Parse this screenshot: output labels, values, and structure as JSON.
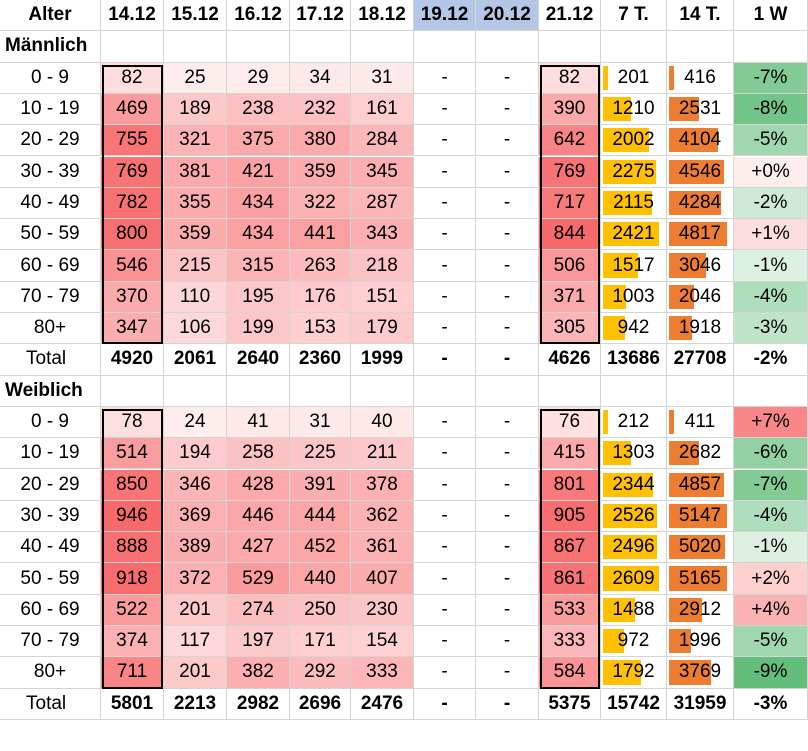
{
  "header": [
    "Alter",
    "14.12",
    "15.12",
    "16.12",
    "17.12",
    "18.12",
    "19.12",
    "20.12",
    "21.12",
    "7 T.",
    "14 T.",
    "1 W"
  ],
  "colors": {
    "weekend_header": "#b4c7e7",
    "bar_7t": "#ffc000",
    "bar_14t": "#ed7d31",
    "heat_max": "#f8696b",
    "heat_min": "#ffffff",
    "change_neg": "#63be7b",
    "change_pos": "#f8696b"
  },
  "sections": [
    {
      "title": "Männlich",
      "rows": [
        {
          "age": "0 - 9",
          "d1412": "82",
          "d1512": "25",
          "d1612": "29",
          "d1712": "34",
          "d1812": "31",
          "d1912": "-",
          "d2012": "-",
          "d2112": "82",
          "t7": "201",
          "t14": "416",
          "w1": "-7%"
        },
        {
          "age": "10 - 19",
          "d1412": "469",
          "d1512": "189",
          "d1612": "238",
          "d1712": "232",
          "d1812": "161",
          "d1912": "-",
          "d2012": "-",
          "d2112": "390",
          "t7": "1210",
          "t14": "2531",
          "w1": "-8%"
        },
        {
          "age": "20 - 29",
          "d1412": "755",
          "d1512": "321",
          "d1612": "375",
          "d1712": "380",
          "d1812": "284",
          "d1912": "-",
          "d2012": "-",
          "d2112": "642",
          "t7": "2002",
          "t14": "4104",
          "w1": "-5%"
        },
        {
          "age": "30 - 39",
          "d1412": "769",
          "d1512": "381",
          "d1612": "421",
          "d1712": "359",
          "d1812": "345",
          "d1912": "-",
          "d2012": "-",
          "d2112": "769",
          "t7": "2275",
          "t14": "4546",
          "w1": "+0%"
        },
        {
          "age": "40 - 49",
          "d1412": "782",
          "d1512": "355",
          "d1612": "434",
          "d1712": "322",
          "d1812": "287",
          "d1912": "-",
          "d2012": "-",
          "d2112": "717",
          "t7": "2115",
          "t14": "4284",
          "w1": "-2%"
        },
        {
          "age": "50 - 59",
          "d1412": "800",
          "d1512": "359",
          "d1612": "434",
          "d1712": "441",
          "d1812": "343",
          "d1912": "-",
          "d2012": "-",
          "d2112": "844",
          "t7": "2421",
          "t14": "4817",
          "w1": "+1%"
        },
        {
          "age": "60 - 69",
          "d1412": "546",
          "d1512": "215",
          "d1612": "315",
          "d1712": "263",
          "d1812": "218",
          "d1912": "-",
          "d2012": "-",
          "d2112": "506",
          "t7": "1517",
          "t14": "3046",
          "w1": "-1%"
        },
        {
          "age": "70 - 79",
          "d1412": "370",
          "d1512": "110",
          "d1612": "195",
          "d1712": "176",
          "d1812": "151",
          "d1912": "-",
          "d2012": "-",
          "d2112": "371",
          "t7": "1003",
          "t14": "2046",
          "w1": "-4%"
        },
        {
          "age": "80+",
          "d1412": "347",
          "d1512": "106",
          "d1612": "199",
          "d1712": "153",
          "d1812": "179",
          "d1912": "-",
          "d2012": "-",
          "d2112": "305",
          "t7": "942",
          "t14": "1918",
          "w1": "-3%"
        }
      ],
      "total": {
        "age": "Total",
        "d1412": "4920",
        "d1512": "2061",
        "d1612": "2640",
        "d1712": "2360",
        "d1812": "1999",
        "d1912": "-",
        "d2012": "-",
        "d2112": "4626",
        "t7": "13686",
        "t14": "27708",
        "w1": "-2%"
      }
    },
    {
      "title": "Weiblich",
      "rows": [
        {
          "age": "0 - 9",
          "d1412": "78",
          "d1512": "24",
          "d1612": "41",
          "d1712": "31",
          "d1812": "40",
          "d1912": "-",
          "d2012": "-",
          "d2112": "76",
          "t7": "212",
          "t14": "411",
          "w1": "+7%"
        },
        {
          "age": "10 - 19",
          "d1412": "514",
          "d1512": "194",
          "d1612": "258",
          "d1712": "225",
          "d1812": "211",
          "d1912": "-",
          "d2012": "-",
          "d2112": "415",
          "t7": "1303",
          "t14": "2682",
          "w1": "-6%"
        },
        {
          "age": "20 - 29",
          "d1412": "850",
          "d1512": "346",
          "d1612": "428",
          "d1712": "391",
          "d1812": "378",
          "d1912": "-",
          "d2012": "-",
          "d2112": "801",
          "t7": "2344",
          "t14": "4857",
          "w1": "-7%"
        },
        {
          "age": "30 - 39",
          "d1412": "946",
          "d1512": "369",
          "d1612": "446",
          "d1712": "444",
          "d1812": "362",
          "d1912": "-",
          "d2012": "-",
          "d2112": "905",
          "t7": "2526",
          "t14": "5147",
          "w1": "-4%"
        },
        {
          "age": "40 - 49",
          "d1412": "888",
          "d1512": "389",
          "d1612": "427",
          "d1712": "452",
          "d1812": "361",
          "d1912": "-",
          "d2012": "-",
          "d2112": "867",
          "t7": "2496",
          "t14": "5020",
          "w1": "-1%"
        },
        {
          "age": "50 - 59",
          "d1412": "918",
          "d1512": "372",
          "d1612": "529",
          "d1712": "440",
          "d1812": "407",
          "d1912": "-",
          "d2012": "-",
          "d2112": "861",
          "t7": "2609",
          "t14": "5165",
          "w1": "+2%"
        },
        {
          "age": "60 - 69",
          "d1412": "522",
          "d1512": "201",
          "d1612": "274",
          "d1712": "250",
          "d1812": "230",
          "d1912": "-",
          "d2012": "-",
          "d2112": "533",
          "t7": "1488",
          "t14": "2912",
          "w1": "+4%"
        },
        {
          "age": "70 - 79",
          "d1412": "374",
          "d1512": "117",
          "d1612": "197",
          "d1712": "171",
          "d1812": "154",
          "d1912": "-",
          "d2012": "-",
          "d2112": "333",
          "t7": "972",
          "t14": "1996",
          "w1": "-5%"
        },
        {
          "age": "80+",
          "d1412": "711",
          "d1512": "201",
          "d1612": "382",
          "d1712": "292",
          "d1812": "333",
          "d1912": "-",
          "d2012": "-",
          "d2112": "584",
          "t7": "1792",
          "t14": "3769",
          "w1": "-9%"
        }
      ],
      "total": {
        "age": "Total",
        "d1412": "5801",
        "d1512": "2213",
        "d1612": "2982",
        "d1712": "2696",
        "d1812": "2476",
        "d1912": "-",
        "d2012": "-",
        "d2112": "5375",
        "t7": "15742",
        "t14": "31959",
        "w1": "-3%"
      }
    }
  ]
}
